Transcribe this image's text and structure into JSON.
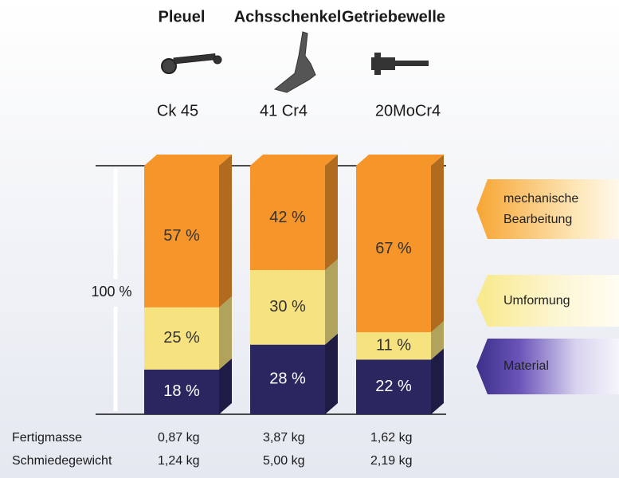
{
  "chart_data": {
    "type": "stacked-bar-3d",
    "categories": [
      "Pleuel",
      "Achsschenkel",
      "Getriebewelle"
    ],
    "materials": [
      "Ck 45",
      "41 Cr4",
      "20MoCr4"
    ],
    "y_label": "100 %",
    "ylim": [
      0,
      100
    ],
    "series": [
      {
        "name": "Material",
        "color": "#2a2660",
        "values": [
          18,
          28,
          22
        ],
        "value_labels": [
          "18 %",
          "28 %",
          "22 %"
        ]
      },
      {
        "name": "Umformung",
        "color": "#f6e380",
        "values": [
          25,
          30,
          11
        ],
        "value_labels": [
          "25 %",
          "30 %",
          "11 %"
        ]
      },
      {
        "name": "mechanische Bearbeitung",
        "color": "#f5952a",
        "values": [
          57,
          42,
          67
        ],
        "value_labels": [
          "57 %",
          "42 %",
          "67 %"
        ]
      }
    ]
  },
  "table": {
    "rows": [
      {
        "label": "Fertigmasse",
        "values": [
          "0,87 kg",
          "3,87 kg",
          "1,62 kg"
        ]
      },
      {
        "label": "Schmiedegewicht",
        "values": [
          "1,24 kg",
          "5,00 kg",
          "2,19 kg"
        ]
      }
    ]
  }
}
